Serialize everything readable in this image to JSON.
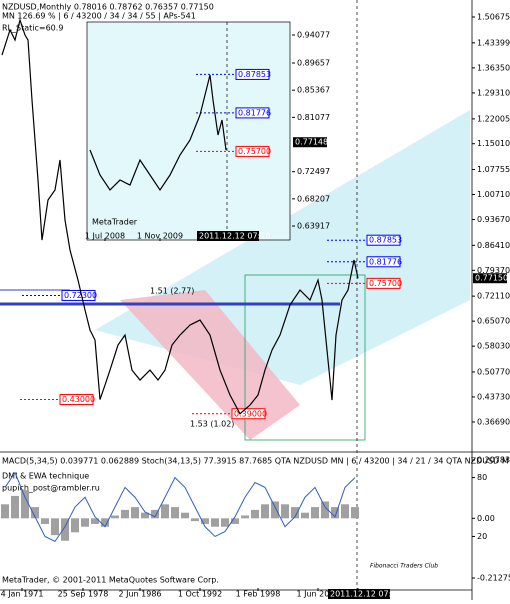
{
  "chart_data": [
    {
      "type": "line",
      "title": "NZDUSD,Monthly  0.78016 0.78762 0.76357 0.77150",
      "subtitle": "MN  126.69 % | 6 / 43200 / 34 / 34 / 55 | APs-541",
      "annotations": [
        "RL_Static=60.9",
        "1.51 (2.77)",
        "1.53 (1.02)"
      ],
      "color": "#000000",
      "xlim": [
        0,
        470
      ],
      "ylim": [
        0.288,
        1.549
      ],
      "x": [
        2,
        10,
        15,
        20,
        25,
        28,
        32,
        38,
        42,
        48,
        55,
        60,
        65,
        70,
        78,
        85,
        90,
        95,
        100,
        105,
        110,
        118,
        125,
        132,
        140,
        150,
        158,
        165,
        172,
        180,
        190,
        200,
        210,
        220,
        230,
        240,
        250,
        258,
        265,
        272,
        280,
        290,
        300,
        310,
        318,
        322,
        328,
        332,
        336,
        342,
        348,
        354,
        358
      ],
      "values": [
        1.3998,
        1.4702,
        1.442,
        1.4983,
        1.4561,
        1.442,
        1.2731,
        1.0479,
        0.879,
        0.9916,
        1.0198,
        1.1042,
        0.9353,
        0.8509,
        0.7664,
        0.682,
        0.6257,
        0.5975,
        0.43,
        0.4708,
        0.513,
        0.5834,
        0.6116,
        0.513,
        0.4849,
        0.513,
        0.4849,
        0.513,
        0.5834,
        0.6116,
        0.6397,
        0.6538,
        0.6116,
        0.513,
        0.4427,
        0.39,
        0.4146,
        0.4427,
        0.513,
        0.5693,
        0.6116,
        0.696,
        0.7382,
        0.7101,
        0.7664,
        0.7101,
        0.5412,
        0.4286,
        0.6116,
        0.7101,
        0.7382,
        0.8227,
        0.7715
      ],
      "yticks": [
        1.50675,
        1.43399,
        {
          "value": 1.3635,
          "label": "1.36350"
        },
        {
          "value": 1.2931,
          "label": "1.29310"
        },
        1.22005,
        {
          "value": 1.1501,
          "label": "1.15010"
        },
        1.07755,
        {
          "value": 1.0071,
          "label": "1.00710"
        },
        {
          "value": 0.9367,
          "label": "0.93670"
        },
        {
          "value": 0.8641,
          "label": "0.86410"
        },
        {
          "value": 0.7937,
          "label": "0.79370"
        },
        {
          "value": 0.7211,
          "label": "0.72110"
        },
        {
          "value": 0.6507,
          "label": "0.65070"
        },
        {
          "value": 0.5803,
          "label": "0.58030"
        },
        {
          "value": 0.5077,
          "label": "0.50770"
        },
        {
          "value": 0.4373,
          "label": "0.43730"
        },
        {
          "value": 0.3669,
          "label": "0.36690"
        }
      ],
      "levels": [
        0.87853,
        0.81776,
        {
          "value": 0.757,
          "label": "0.75700"
        },
        {
          "value": 0.723,
          "label": "0.72300"
        },
        {
          "value": 0.43,
          "label": "0.43000"
        },
        {
          "value": 0.39,
          "label": "0.39000"
        }
      ],
      "level_colors": [
        "#0000ff",
        "#0000ff",
        "#ff0000",
        "#0000ff",
        "#ff0000",
        "#ff0000"
      ],
      "last": {
        "value": 0.7715,
        "label": "0.77150"
      }
    },
    {
      "type": "line",
      "annotations": [
        "MetaTrader"
      ],
      "color": "#000000",
      "xlim": [
        87,
        290
      ],
      "ylim": [
        0.6171,
        0.9613
      ],
      "x": [
        90,
        100,
        110,
        120,
        130,
        140,
        150,
        160,
        170,
        180,
        190,
        200,
        205,
        210,
        213,
        218,
        222,
        226
      ],
      "values": [
        0.7592,
        0.7197,
        0.6961,
        0.7118,
        0.7039,
        0.7434,
        0.7197,
        0.6961,
        0.7197,
        0.7513,
        0.775,
        0.8145,
        0.8461,
        0.8776,
        0.8382,
        0.7829,
        0.8066,
        0.7592
      ],
      "yticks": [
        0.94077,
        0.89657,
        0.85367,
        0.81077,
        0.72497,
        0.68207,
        0.63917
      ],
      "xticks": [
        {
          "value": 105,
          "label": "1 Jul 2008"
        },
        {
          "value": 160,
          "label": "1 Nov 2009"
        },
        {
          "value": 227,
          "label": "2011.12.12 07:16"
        }
      ],
      "levels": [
        0.87853,
        0.81776,
        {
          "value": 0.757,
          "label": "0.75700"
        }
      ],
      "level_colors": [
        "#0000ff",
        "#0000ff",
        "#ff0000"
      ],
      "last": 0.77148
    },
    {
      "type": "bar",
      "title": "MACD(5,34,5) 0.039771 0.062889  Stoch(34,13,5) 77.3915 87.7685  QTA NZDUSD MN | 6 / 43200 | 34 / 21 / 34  QTA NZDUSD M",
      "annotations": [
        "DMI & EWA  technique",
        "pupich_post@rambler.ru",
        "MetaTrader, © 2001-2011 MetaQuotes Software Corp.",
        "Fibonacci Traders Club"
      ],
      "color": "#a0a0a0",
      "xlim": [
        0,
        470
      ],
      "ylim": [
        -0.2555,
        0.2257
      ],
      "y2lim": [
        -34.6,
        103.05
      ],
      "x": [
        5,
        15,
        25,
        35,
        45,
        55,
        65,
        75,
        85,
        95,
        105,
        115,
        125,
        135,
        145,
        155,
        165,
        175,
        185,
        195,
        205,
        215,
        225,
        235,
        245,
        255,
        265,
        275,
        285,
        295,
        305,
        315,
        325,
        335,
        345,
        355
      ],
      "values": [
        0.05,
        0.08,
        0.1,
        0.04,
        -0.02,
        -0.06,
        -0.08,
        -0.05,
        -0.03,
        -0.02,
        -0.03,
        0.01,
        0.03,
        0.04,
        0.02,
        0.03,
        0.05,
        0.04,
        0.02,
        -0.01,
        -0.02,
        -0.03,
        -0.03,
        -0.02,
        0.01,
        0.03,
        0.05,
        0.06,
        0.05,
        0.04,
        0.02,
        0.04,
        0.06,
        0.04,
        0.05,
        0.04
      ],
      "series": [
        {
          "color": "#3060c0",
          "axis": "y2",
          "values": [
            70,
            85,
            60,
            40,
            20,
            15,
            30,
            50,
            60,
            40,
            30,
            50,
            70,
            60,
            45,
            40,
            60,
            80,
            70,
            50,
            30,
            20,
            25,
            40,
            60,
            75,
            70,
            50,
            30,
            40,
            60,
            70,
            50,
            40,
            70,
            80
          ]
        }
      ],
      "yticks": [
        0.20783,
        {
          "value": 0,
          "label": "0.00"
        },
        -0.21275
      ],
      "y2ticks": [
        80,
        20
      ],
      "xticks": [
        {
          "value": 22,
          "label": "4 Jan 1971"
        },
        {
          "value": 83,
          "label": "25 Sep 1978"
        },
        {
          "value": 140,
          "label": "2 Jun 1986"
        },
        {
          "value": 200,
          "label": "1 Oct 1992"
        },
        {
          "value": 258,
          "label": "1 Feb 1998"
        },
        {
          "value": 318,
          "label": "1 Jun 2003"
        },
        {
          "value": 358,
          "label": "2011.12.12 07:16"
        }
      ]
    }
  ]
}
